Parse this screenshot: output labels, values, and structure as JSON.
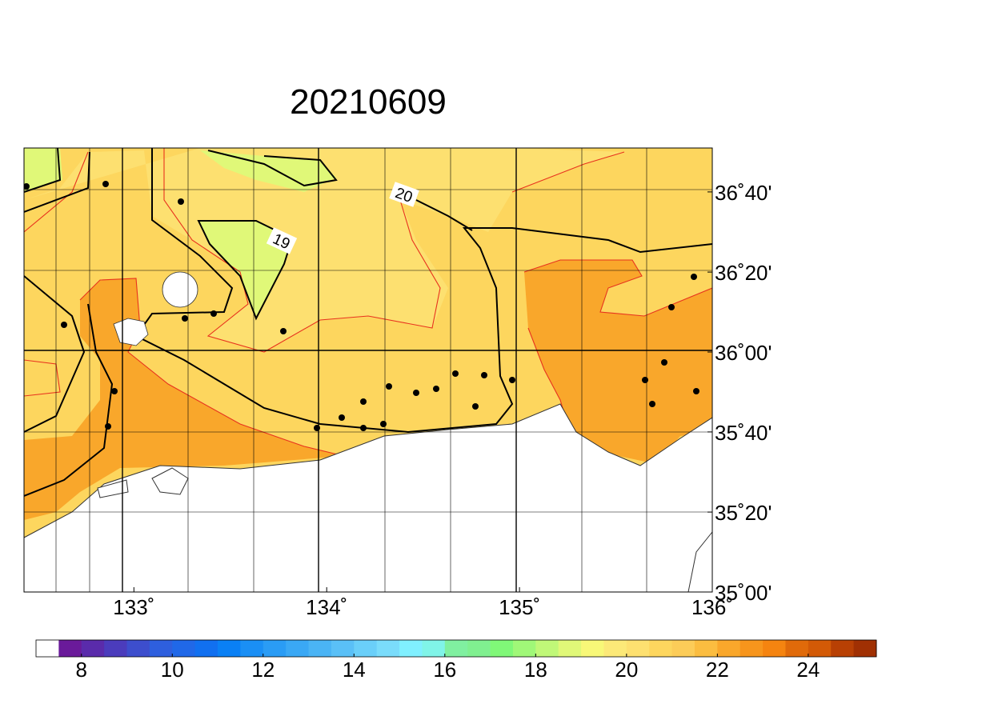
{
  "title": "20210609",
  "map": {
    "lon_range": [
      132.43,
      136
    ],
    "lat_range": [
      35,
      36.85
    ],
    "lon_ticks": [
      {
        "value": 133,
        "label": "133˚"
      },
      {
        "value": 134,
        "label": "134˚"
      },
      {
        "value": 135,
        "label": "135˚"
      },
      {
        "value": 136,
        "label": "136˚"
      }
    ],
    "lat_ticks": [
      {
        "value": 35,
        "label": "35˚00'"
      },
      {
        "value": 35.333,
        "label": "35˚20'"
      },
      {
        "value": 35.667,
        "label": "35˚40'"
      },
      {
        "value": 36,
        "label": "36˚00'"
      },
      {
        "value": 36.333,
        "label": "36˚20'"
      },
      {
        "value": 36.667,
        "label": "36˚40'"
      }
    ],
    "contour_labels": [
      "19",
      "20"
    ]
  },
  "colorbar": {
    "range": [
      7,
      25.5
    ],
    "ticks": [
      8,
      10,
      12,
      14,
      16,
      18,
      20,
      22,
      24
    ],
    "colors": [
      "#ffffff",
      "#6a1a9a",
      "#5a2bab",
      "#4b3cbc",
      "#3d4ecd",
      "#2e5fde",
      "#2068e8",
      "#1170f0",
      "#0a80f5",
      "#1a8ff5",
      "#2a9cf5",
      "#3aa8f5",
      "#4ab4f5",
      "#5ac0f7",
      "#6acff9",
      "#7adcfb",
      "#80f0ff",
      "#80f4e8",
      "#80f0a0",
      "#80f090",
      "#80f878",
      "#a0f878",
      "#c0f878",
      "#e0f878",
      "#f8f878",
      "#fce978",
      "#fde070",
      "#fdd65e",
      "#fccc58",
      "#fbbd40",
      "#f9a72b",
      "#f7951c",
      "#f58410",
      "#e06a0a",
      "#d35a06",
      "#b84004",
      "#a03003"
    ]
  }
}
